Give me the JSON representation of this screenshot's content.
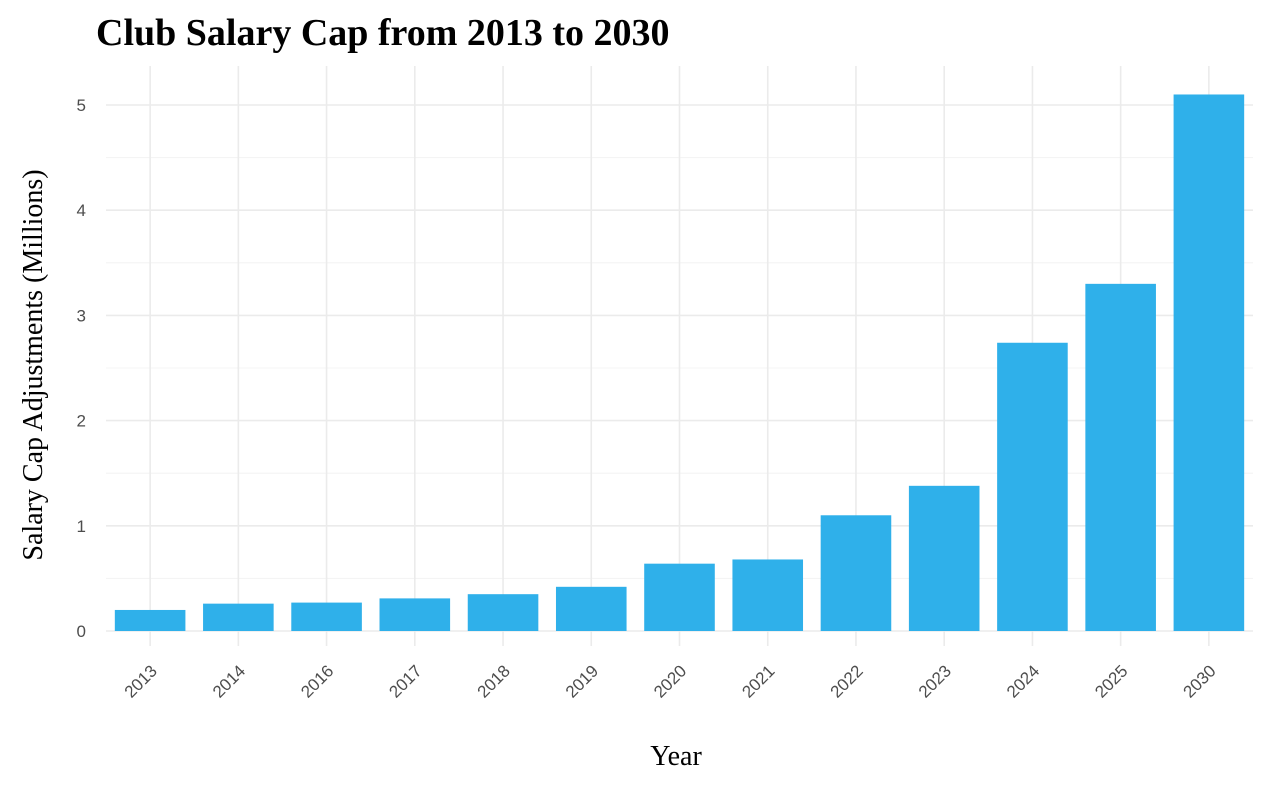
{
  "chart_data": {
    "type": "bar",
    "title": "Club Salary Cap from 2013 to 2030",
    "xlabel": "Year",
    "ylabel": "Salary Cap Adjustments (Millions)",
    "categories": [
      "2013",
      "2014",
      "2016",
      "2017",
      "2018",
      "2019",
      "2020",
      "2021",
      "2022",
      "2023",
      "2024",
      "2025",
      "2030"
    ],
    "values": [
      0.2,
      0.26,
      0.27,
      0.31,
      0.35,
      0.42,
      0.64,
      0.68,
      1.1,
      1.38,
      2.74,
      3.3,
      5.1
    ],
    "ylim": [
      0,
      5.35
    ],
    "yticks": [
      0,
      1,
      2,
      3,
      4,
      5
    ],
    "bar_color": "#2fb0ea",
    "grid": true,
    "legend": "none"
  }
}
